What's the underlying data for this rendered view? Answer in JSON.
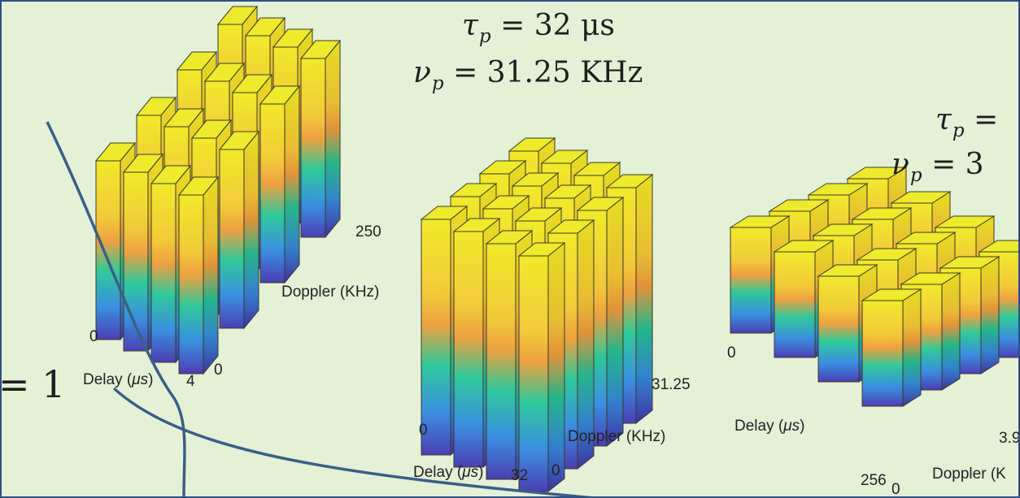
{
  "colors": {
    "panel_bg": "#e4f1d6",
    "frame": "#2f4e86",
    "curve": "#3a5f86",
    "bar_top": "#ecec2c",
    "bar_mid_yellow": "#f6e62a",
    "bar_orange": "#f0a43a",
    "bar_green": "#2bbf9a",
    "bar_blue": "#4a63d8",
    "bar_bottom": "#4b3fb0"
  },
  "left": {
    "equals_one": "= 1",
    "tick_delay_start": "0",
    "tick_delay_end": "4",
    "tick_doppler_start": "0",
    "tick_doppler_end": "250",
    "delay_label_text": "Delay (",
    "delay_label_unit": "μs",
    "delay_label_close": ")",
    "doppler_label": "Doppler (KHz)"
  },
  "middle": {
    "tau_symbol": "τ",
    "tau_sub": "p",
    "tau_value": "= 32 μs",
    "nu_symbol": "ν",
    "nu_sub": "p",
    "nu_value": "= 31.25 KHz",
    "tick_delay_start": "0",
    "tick_delay_end": "32",
    "tick_doppler_start": "0",
    "tick_doppler_end": "31.25",
    "delay_label_text": "Delay (",
    "delay_label_unit": "μs",
    "delay_label_close": ")",
    "doppler_label": "Doppler (KHz)"
  },
  "right": {
    "tau_symbol": "τ",
    "tau_sub": "p",
    "tau_value": "=",
    "nu_symbol": "ν",
    "nu_sub": "p",
    "nu_value": "= 3",
    "tick_delay_start": "0",
    "tick_delay_end": "256",
    "tick_doppler_start": "0",
    "tick_doppler_end": "3.9",
    "delay_label_text": "Delay (",
    "delay_label_unit": "μs",
    "delay_label_close": ")",
    "doppler_label": "Doppler (K"
  }
}
